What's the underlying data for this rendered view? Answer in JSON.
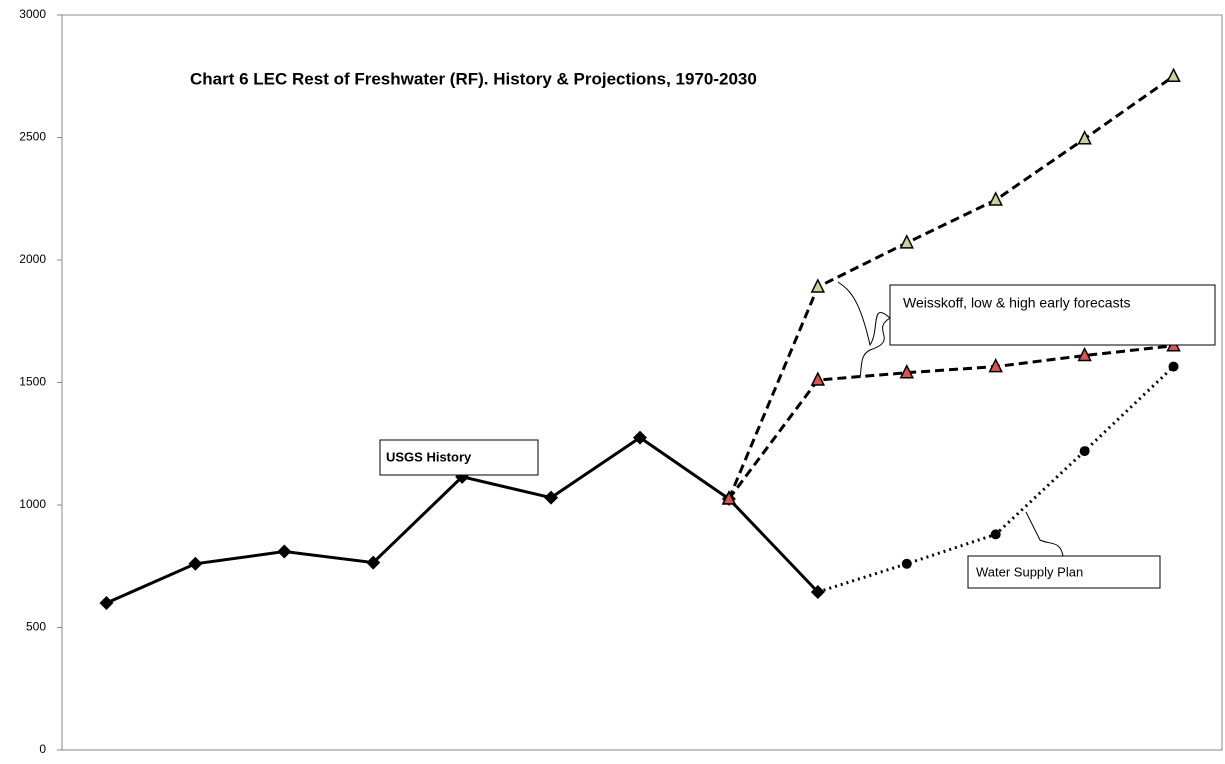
{
  "chart_data": {
    "type": "line",
    "title": "Chart 6 LEC Rest of Freshwater (RF).  History & Projections, 1970-2030",
    "categories": [
      null,
      null,
      null,
      null,
      null,
      null,
      null,
      null,
      null,
      null,
      null,
      null,
      null
    ],
    "series": [
      {
        "color": "#000000",
        "marker": "diamond",
        "marker_color": "#000000",
        "dash": "solid",
        "values": [
          600,
          760,
          810,
          765,
          1115,
          1030,
          1275,
          1025,
          645,
          null,
          null,
          null,
          null
        ]
      },
      {
        "color": "#000000",
        "marker": "triangle",
        "marker_color": "#c4d79b",
        "dash": "dashed",
        "values": [
          null,
          null,
          null,
          null,
          null,
          null,
          null,
          1025,
          1890,
          2070,
          2245,
          2495,
          2750
        ]
      },
      {
        "color": "#000000",
        "marker": "triangle",
        "marker_color": "#d9534f",
        "dash": "dashed",
        "values": [
          null,
          null,
          null,
          null,
          null,
          null,
          null,
          1025,
          1510,
          1540,
          1565,
          1610,
          1650
        ]
      },
      {
        "color": "#000000",
        "marker": "circle",
        "marker_color": "#000000",
        "dash": "dotted",
        "values": [
          null,
          null,
          null,
          null,
          null,
          null,
          null,
          null,
          645,
          760,
          880,
          1220,
          1565
        ]
      }
    ],
    "annotations": [
      "USGS History",
      "Weisskoff, low & high early forecasts",
      "Water Supply Plan"
    ],
    "ylim": [
      0,
      3000
    ],
    "yticks": [
      0,
      500,
      1000,
      1500,
      2000,
      2500,
      3000
    ],
    "grid": false
  }
}
